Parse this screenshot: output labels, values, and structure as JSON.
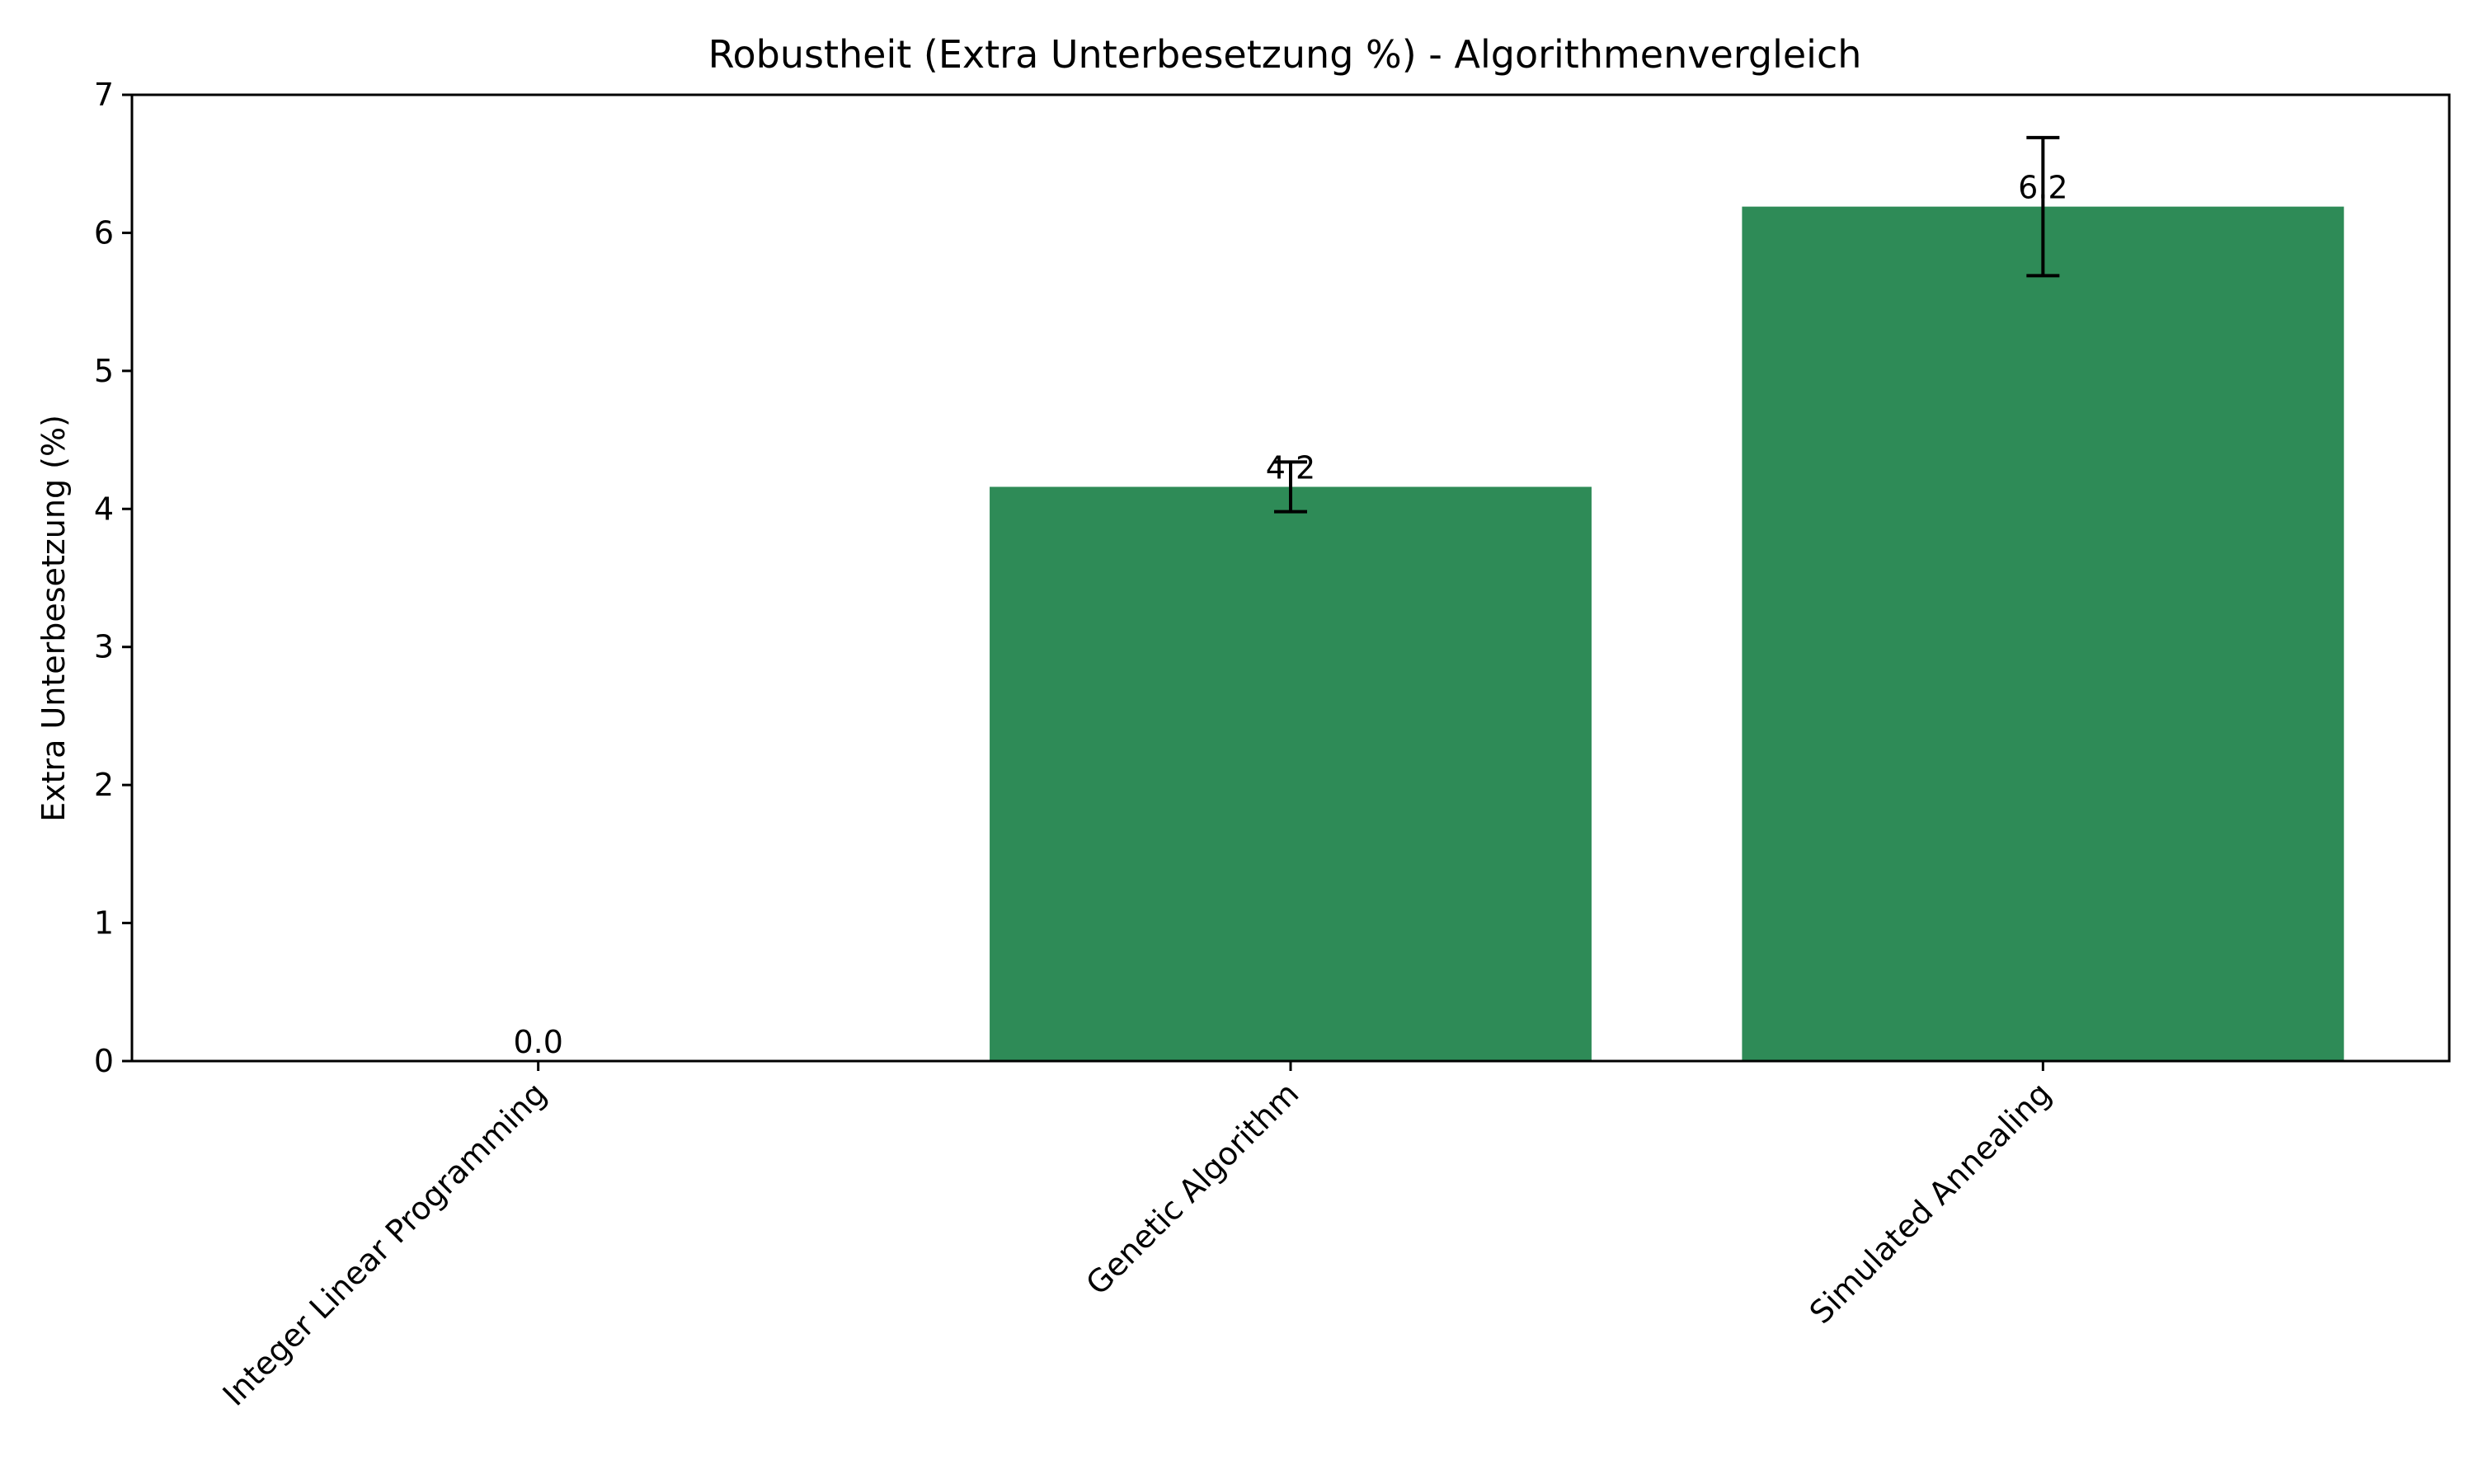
{
  "chart_data": {
    "type": "bar",
    "title": "Robustheit (Extra Unterbesetzung %) - Algorithmenvergleich",
    "xlabel": "",
    "ylabel": "Extra Unterbesetzung (%)",
    "categories": [
      "Integer Linear Programming",
      "Genetic Algorithm",
      "Simulated Annealing"
    ],
    "values": [
      0.0,
      4.16,
      6.19
    ],
    "errors": [
      0.0,
      0.18,
      0.5
    ],
    "value_labels": [
      "0.0",
      "4.2",
      "6.2"
    ],
    "ylim": [
      0,
      7
    ],
    "yticks": [
      0,
      1,
      2,
      3,
      4,
      5,
      6,
      7
    ],
    "grid": false,
    "legend": "none",
    "bar_color": "#2e8b57",
    "error_color": "#000000"
  }
}
